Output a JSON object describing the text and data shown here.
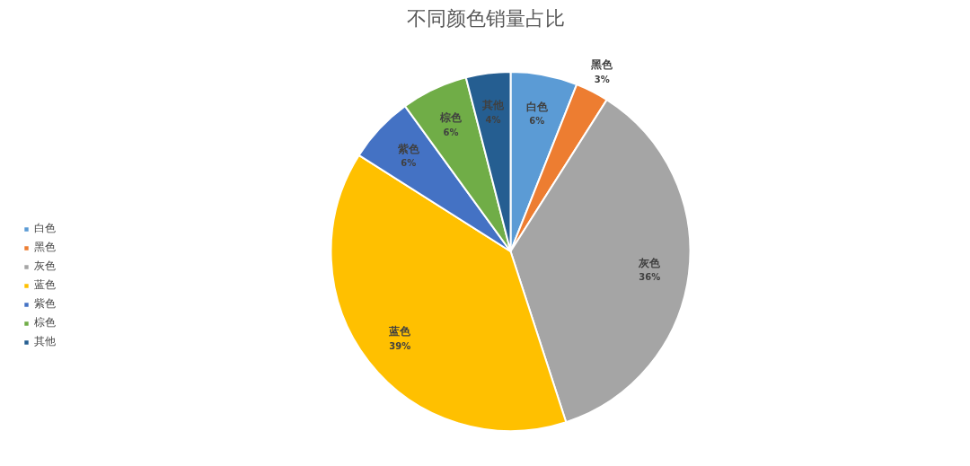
{
  "chart_data": {
    "type": "pie",
    "title": "不同颜色销量占比",
    "categories": [
      "白色",
      "黑色",
      "灰色",
      "蓝色",
      "紫色",
      "棕色",
      "其他"
    ],
    "values": [
      6,
      3,
      36,
      39,
      6,
      6,
      4
    ],
    "colors": [
      "#5b9bd5",
      "#ed7d31",
      "#a5a5a5",
      "#ffc000",
      "#4472c4",
      "#70ad47",
      "#255e91"
    ],
    "value_labels": [
      "6%",
      "3%",
      "36%",
      "39%",
      "6%",
      "6%",
      "4%"
    ],
    "legend": "left"
  }
}
